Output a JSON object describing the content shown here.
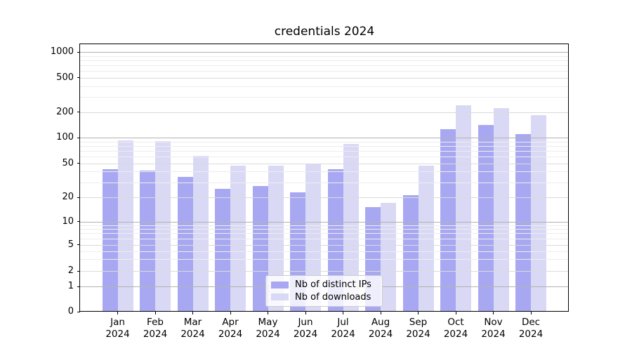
{
  "title": "credentials 2024",
  "colors": {
    "bar_ips": "#a8a8f2",
    "bar_downloads": "#d9d9f6",
    "grid_major": "#b2b2b2",
    "grid_mid": "#dadada",
    "grid_minor": "#ededed",
    "axis": "#000000",
    "legend_border": "#cccccc"
  },
  "legend": {
    "items": [
      {
        "label": "Nb of distinct IPs",
        "color_key": "bar_ips"
      },
      {
        "label": "Nb of downloads",
        "color_key": "bar_downloads"
      }
    ]
  },
  "y_axis": {
    "tick_labels": [
      "1000",
      "500",
      "200",
      "100",
      "50",
      "20",
      "10",
      "5",
      "2",
      "1",
      "0"
    ]
  },
  "x_axis": {
    "months": [
      "Jan",
      "Feb",
      "Mar",
      "Apr",
      "May",
      "Jun",
      "Jul",
      "Aug",
      "Sep",
      "Oct",
      "Nov",
      "Dec"
    ],
    "year": "2024"
  },
  "chart_data": {
    "type": "bar",
    "title": "credentials 2024",
    "categories": [
      "Jan 2024",
      "Feb 2024",
      "Mar 2024",
      "Apr 2024",
      "May 2024",
      "Jun 2024",
      "Jul 2024",
      "Aug 2024",
      "Sep 2024",
      "Oct 2024",
      "Nov 2024",
      "Dec 2024"
    ],
    "series": [
      {
        "name": "Nb of distinct IPs",
        "values": [
          43,
          41,
          35,
          25,
          27,
          23,
          43,
          15,
          21,
          125,
          140,
          110
        ]
      },
      {
        "name": "Nb of downloads",
        "values": [
          93,
          91,
          61,
          47,
          47,
          49,
          85,
          17,
          47,
          237,
          222,
          185
        ]
      }
    ],
    "xlabel": "",
    "ylabel": "",
    "yscale": "symlog",
    "y_ticks": [
      0,
      1,
      2,
      5,
      10,
      20,
      50,
      100,
      200,
      500,
      1000
    ],
    "ylim": [
      0,
      1250
    ],
    "grid": true,
    "legend_position": "lower center"
  }
}
